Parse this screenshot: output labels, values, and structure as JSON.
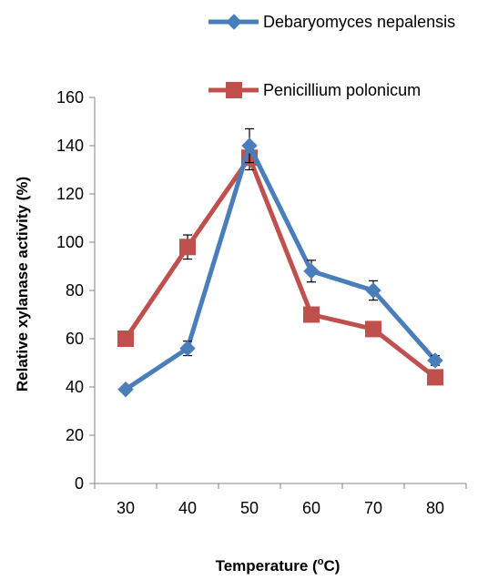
{
  "chart_data": {
    "type": "line",
    "x": [
      30,
      40,
      50,
      60,
      70,
      80
    ],
    "series": [
      {
        "name": "Debaryomyces nepalensis",
        "values": [
          39,
          56,
          140,
          88,
          80,
          51
        ],
        "errors": [
          1,
          3,
          7,
          4.5,
          4,
          2
        ],
        "color": "#4a7ebb",
        "marker": "diamond"
      },
      {
        "name": "Penicillium polonicum",
        "values": [
          60,
          98,
          135,
          70,
          64,
          44
        ],
        "errors": [
          0,
          5,
          5,
          0,
          0,
          0
        ],
        "color": "#c0504d",
        "marker": "square"
      }
    ],
    "xlabel": {
      "prefix": "Temperature (",
      "sup": "o",
      "suffix": "C)"
    },
    "ylabel": "Relative xylanase activity (%)",
    "ylim": [
      0,
      160
    ],
    "yticks": [
      0,
      20,
      40,
      60,
      80,
      100,
      120,
      140,
      160
    ],
    "xtick_labels": [
      "30",
      "40",
      "50",
      "60",
      "70",
      "80"
    ],
    "grid": false,
    "legend_placement": "top-right"
  }
}
